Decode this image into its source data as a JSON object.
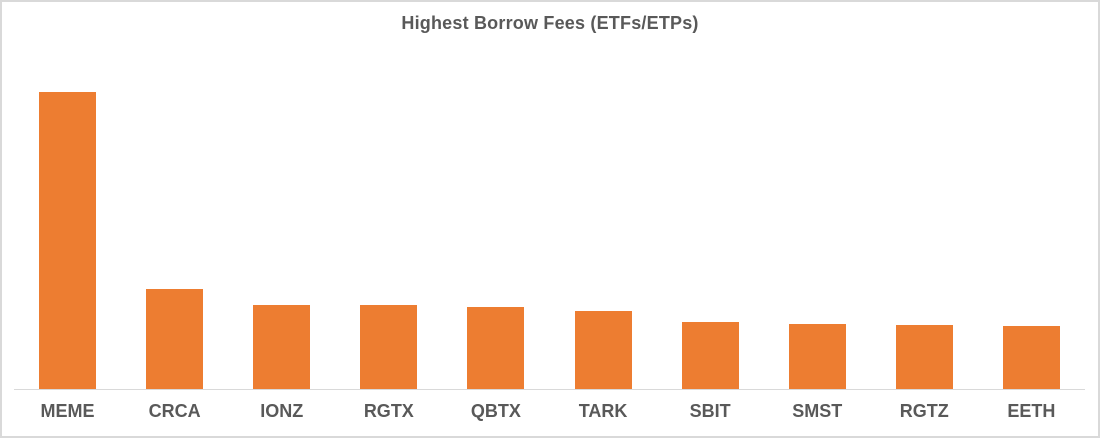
{
  "chart_data": {
    "type": "bar",
    "title": "Highest Borrow Fees (ETFs/ETPs)",
    "categories": [
      "MEME",
      "CRCA",
      "IONZ",
      "RGTX",
      "QBTX",
      "TARK",
      "SBIT",
      "SMST",
      "RGTZ",
      "EETH"
    ],
    "values": [
      100,
      33.8,
      28.1,
      28.1,
      27.7,
      26.1,
      22.4,
      22.0,
      21.7,
      21.3
    ],
    "value_note": "y-axis is unlabeled in the chart; values are relative bar heights with the tallest bar (MEME) = 100",
    "xlabel": "",
    "ylabel": "",
    "ylim": [
      0,
      115
    ],
    "grid": false,
    "legend": false,
    "y_axis_visible": false,
    "bar_color": "#ED7D31",
    "axis_line_color": "#D9D9D9",
    "title_color": "#595959",
    "tick_label_color": "#595959",
    "background_color": "#FFFFFF",
    "frame_border_color": "#D9D9D9"
  }
}
